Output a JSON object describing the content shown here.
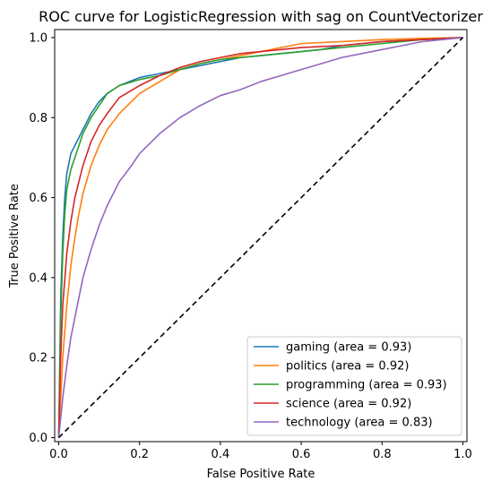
{
  "chart_data": {
    "type": "line",
    "title": "ROC curve for LogisticRegression with sag on CountVectorizer",
    "xlabel": "False Positive Rate",
    "ylabel": "True Positive Rate",
    "xlim": [
      -0.01,
      1.01
    ],
    "ylim": [
      -0.01,
      1.02
    ],
    "xticks": [
      {
        "value": 0.0,
        "label": "0.0"
      },
      {
        "value": 0.2,
        "label": "0.2"
      },
      {
        "value": 0.4,
        "label": "0.4"
      },
      {
        "value": 0.6,
        "label": "0.6"
      },
      {
        "value": 0.8,
        "label": "0.8"
      },
      {
        "value": 1.0,
        "label": "1.0"
      }
    ],
    "yticks": [
      {
        "value": 0.0,
        "label": "0.0"
      },
      {
        "value": 0.2,
        "label": "0.2"
      },
      {
        "value": 0.4,
        "label": "0.4"
      },
      {
        "value": 0.6,
        "label": "0.6"
      },
      {
        "value": 0.8,
        "label": "0.8"
      },
      {
        "value": 1.0,
        "label": "1.0"
      }
    ],
    "grid": false,
    "legend_position": "lower-right",
    "series": [
      {
        "name": "gaming (area = 0.93)",
        "color": "#1f77b4",
        "x": [
          0,
          0.005,
          0.01,
          0.015,
          0.02,
          0.03,
          0.04,
          0.05,
          0.06,
          0.08,
          0.1,
          0.12,
          0.15,
          0.2,
          0.25,
          0.3,
          0.35,
          0.4,
          0.45,
          0.5,
          0.55,
          0.6,
          0.65,
          0.7,
          0.8,
          0.9,
          1.0
        ],
        "y": [
          0,
          0.35,
          0.5,
          0.6,
          0.66,
          0.71,
          0.73,
          0.75,
          0.77,
          0.81,
          0.84,
          0.86,
          0.88,
          0.9,
          0.91,
          0.92,
          0.93,
          0.94,
          0.95,
          0.955,
          0.96,
          0.965,
          0.97,
          0.98,
          0.99,
          0.995,
          1.0
        ]
      },
      {
        "name": "politics (area = 0.92)",
        "color": "#ff7f0e",
        "x": [
          0,
          0.01,
          0.02,
          0.03,
          0.04,
          0.05,
          0.06,
          0.08,
          0.1,
          0.12,
          0.15,
          0.2,
          0.25,
          0.3,
          0.35,
          0.4,
          0.45,
          0.5,
          0.55,
          0.6,
          0.7,
          0.8,
          0.9,
          1.0
        ],
        "y": [
          0,
          0.2,
          0.33,
          0.43,
          0.5,
          0.56,
          0.61,
          0.68,
          0.73,
          0.77,
          0.81,
          0.86,
          0.89,
          0.92,
          0.935,
          0.945,
          0.955,
          0.965,
          0.975,
          0.985,
          0.99,
          0.995,
          0.998,
          1.0
        ]
      },
      {
        "name": "programming (area = 0.93)",
        "color": "#2ca02c",
        "x": [
          0,
          0.005,
          0.01,
          0.015,
          0.02,
          0.03,
          0.04,
          0.05,
          0.06,
          0.08,
          0.1,
          0.12,
          0.15,
          0.2,
          0.25,
          0.3,
          0.35,
          0.4,
          0.45,
          0.5,
          0.55,
          0.6,
          0.65,
          0.7,
          0.8,
          0.9,
          1.0
        ],
        "y": [
          0,
          0.3,
          0.46,
          0.56,
          0.62,
          0.67,
          0.7,
          0.73,
          0.76,
          0.8,
          0.83,
          0.86,
          0.88,
          0.895,
          0.905,
          0.92,
          0.935,
          0.945,
          0.95,
          0.955,
          0.96,
          0.965,
          0.97,
          0.975,
          0.985,
          0.995,
          1.0
        ]
      },
      {
        "name": "science (area = 0.92)",
        "color": "#d62728",
        "x": [
          0,
          0.005,
          0.01,
          0.02,
          0.03,
          0.04,
          0.05,
          0.06,
          0.08,
          0.1,
          0.12,
          0.15,
          0.2,
          0.25,
          0.3,
          0.35,
          0.4,
          0.45,
          0.5,
          0.55,
          0.6,
          0.7,
          0.8,
          0.9,
          1.0
        ],
        "y": [
          0,
          0.2,
          0.33,
          0.46,
          0.54,
          0.6,
          0.64,
          0.68,
          0.74,
          0.78,
          0.81,
          0.85,
          0.88,
          0.905,
          0.925,
          0.94,
          0.95,
          0.96,
          0.965,
          0.97,
          0.975,
          0.98,
          0.99,
          0.995,
          1.0
        ]
      },
      {
        "name": "technology (area = 0.83)",
        "color": "#9467bd",
        "x": [
          0,
          0.01,
          0.02,
          0.03,
          0.04,
          0.05,
          0.06,
          0.08,
          0.1,
          0.12,
          0.15,
          0.18,
          0.2,
          0.25,
          0.3,
          0.35,
          0.4,
          0.45,
          0.5,
          0.55,
          0.6,
          0.65,
          0.7,
          0.75,
          0.8,
          0.85,
          0.9,
          0.95,
          1.0
        ],
        "y": [
          0,
          0.1,
          0.18,
          0.25,
          0.3,
          0.35,
          0.4,
          0.47,
          0.53,
          0.58,
          0.64,
          0.68,
          0.71,
          0.76,
          0.8,
          0.83,
          0.855,
          0.87,
          0.89,
          0.905,
          0.92,
          0.935,
          0.95,
          0.96,
          0.97,
          0.98,
          0.99,
          0.995,
          1.0
        ]
      }
    ],
    "reference_line": {
      "x": [
        0,
        1
      ],
      "y": [
        0,
        1
      ],
      "color": "#000000",
      "style": "dashed"
    }
  }
}
